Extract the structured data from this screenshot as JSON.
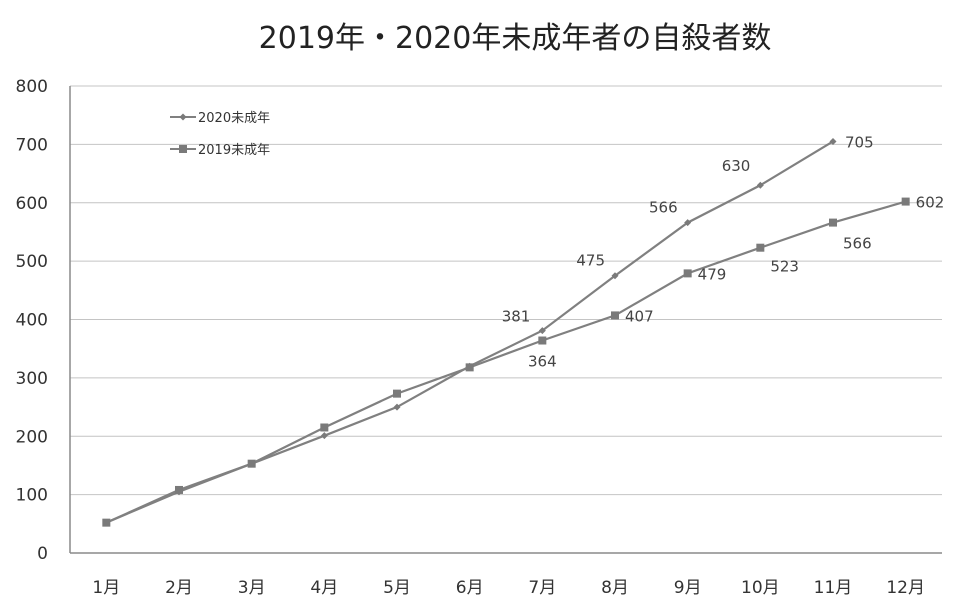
{
  "chart_data": {
    "type": "line",
    "title": "2019年・2020年未成年者の自殺者数",
    "xlabel": "",
    "ylabel": "",
    "categories": [
      "1月",
      "2月",
      "3月",
      "4月",
      "5月",
      "6月",
      "7月",
      "8月",
      "9月",
      "10月",
      "11月",
      "12月"
    ],
    "ylim": [
      0,
      800
    ],
    "yticks": [
      0,
      100,
      200,
      300,
      400,
      500,
      600,
      700,
      800
    ],
    "grid": true,
    "legend_position": "top-left",
    "series": [
      {
        "name": "2020未成年",
        "marker": "diamond",
        "color": "#808080",
        "values": [
          52,
          105,
          153,
          201,
          250,
          320,
          381,
          475,
          566,
          630,
          705,
          null
        ],
        "labels": [
          null,
          null,
          null,
          null,
          null,
          null,
          "381",
          "475",
          "566",
          "630",
          "705",
          null
        ]
      },
      {
        "name": "2019未成年",
        "marker": "square",
        "color": "#808080",
        "values": [
          52,
          108,
          153,
          215,
          273,
          318,
          364,
          407,
          479,
          523,
          566,
          602
        ],
        "labels": [
          null,
          null,
          null,
          null,
          null,
          null,
          "364",
          "407",
          "479",
          "523",
          "566",
          "602"
        ]
      }
    ]
  }
}
